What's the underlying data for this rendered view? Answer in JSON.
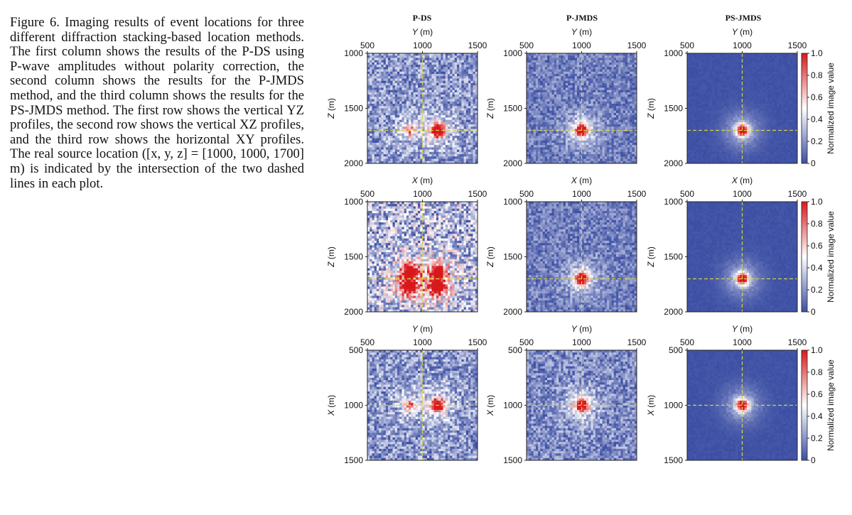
{
  "caption": {
    "text": "Figure 6. Imaging results of event locations for three different diffraction stacking-based location methods. The first column shows the results of the P-DS using P-wave amplitudes without polarity correction, the second column shows the results for the P-JMDS method, and the third column shows the results for the PS-JMDS method. The first row shows the vertical YZ profiles, the second row shows the vertical XZ profiles, and the third row shows the horizontal XY profiles. The real source location ([x, y, z] = [1000, 1000, 1700] m) is indicated by the intersection of the two dashed lines in each plot."
  },
  "figure": {
    "column_titles": [
      "P-DS",
      "P-JMDS",
      "PS-JMDS"
    ],
    "colorbar_label": "Normalized image value",
    "colorbar_ticks": [
      "0",
      "0.2",
      "0.4",
      "0.6",
      "0.8",
      "1.0"
    ],
    "colors": {
      "low": "#3b4ea3",
      "mid": "#ffffff",
      "high": "#d7191c",
      "crosshair": "#d8d04a"
    }
  },
  "chart_data": [
    {
      "type": "heatmap",
      "row": 1,
      "column": "P-DS",
      "xlabel": "Y (m)",
      "ylabel": "Z (m)",
      "xticks": [
        500,
        1000,
        1500
      ],
      "yticks": [
        1000,
        1500,
        2000
      ],
      "xlim": [
        500,
        1500
      ],
      "ylim": [
        2000,
        1000
      ],
      "crosshair": {
        "x": 1000,
        "y": 1700
      },
      "noise_level": 0.3,
      "hotspots": [
        {
          "x": 1140,
          "y": 1700,
          "value": 1.0
        },
        {
          "x": 880,
          "y": 1700,
          "value": 0.5
        }
      ]
    },
    {
      "type": "heatmap",
      "row": 1,
      "column": "P-JMDS",
      "xlabel": "Y (m)",
      "ylabel": "Z (m)",
      "xticks": [
        500,
        1000,
        1500
      ],
      "yticks": [
        1000,
        1500,
        2000
      ],
      "xlim": [
        500,
        1500
      ],
      "ylim": [
        2000,
        1000
      ],
      "crosshair": {
        "x": 1000,
        "y": 1700
      },
      "noise_level": 0.2,
      "hotspots": [
        {
          "x": 1000,
          "y": 1700,
          "value": 1.0
        }
      ]
    },
    {
      "type": "heatmap",
      "row": 1,
      "column": "PS-JMDS",
      "xlabel": "Y (m)",
      "ylabel": "Z (m)",
      "xticks": [
        500,
        1000,
        1500
      ],
      "yticks": [
        1000,
        1500,
        2000
      ],
      "xlim": [
        500,
        1500
      ],
      "ylim": [
        2000,
        1000
      ],
      "crosshair": {
        "x": 1000,
        "y": 1700
      },
      "noise_level": 0.02,
      "hotspots": [
        {
          "x": 1000,
          "y": 1700,
          "value": 1.0
        }
      ]
    },
    {
      "type": "heatmap",
      "row": 2,
      "column": "P-DS",
      "xlabel": "X (m)",
      "ylabel": "Z (m)",
      "xticks": [
        500,
        1000,
        1500
      ],
      "yticks": [
        1000,
        1500,
        2000
      ],
      "xlim": [
        500,
        1500
      ],
      "ylim": [
        2000,
        1000
      ],
      "crosshair": {
        "x": 1000,
        "y": 1700
      },
      "noise_level": 0.45,
      "hotspots": [
        {
          "x": 880,
          "y": 1640,
          "value": 0.9
        },
        {
          "x": 1140,
          "y": 1640,
          "value": 0.9
        },
        {
          "x": 880,
          "y": 1770,
          "value": 1.0
        },
        {
          "x": 1140,
          "y": 1770,
          "value": 1.0
        }
      ]
    },
    {
      "type": "heatmap",
      "row": 2,
      "column": "P-JMDS",
      "xlabel": "X (m)",
      "ylabel": "Z (m)",
      "xticks": [
        500,
        1000,
        1500
      ],
      "yticks": [
        1000,
        1500,
        2000
      ],
      "xlim": [
        500,
        1500
      ],
      "ylim": [
        2000,
        1000
      ],
      "crosshair": {
        "x": 1000,
        "y": 1700
      },
      "noise_level": 0.2,
      "hotspots": [
        {
          "x": 1000,
          "y": 1700,
          "value": 1.0
        }
      ]
    },
    {
      "type": "heatmap",
      "row": 2,
      "column": "PS-JMDS",
      "xlabel": "X (m)",
      "ylabel": "Z (m)",
      "xticks": [
        500,
        1000,
        1500
      ],
      "yticks": [
        1000,
        1500,
        2000
      ],
      "xlim": [
        500,
        1500
      ],
      "ylim": [
        2000,
        1000
      ],
      "crosshair": {
        "x": 1000,
        "y": 1700
      },
      "noise_level": 0.02,
      "hotspots": [
        {
          "x": 1000,
          "y": 1700,
          "value": 1.0
        }
      ]
    },
    {
      "type": "heatmap",
      "row": 3,
      "column": "P-DS",
      "xlabel": "Y (m)",
      "ylabel": "X (m)",
      "xticks": [
        500,
        1000,
        1500
      ],
      "yticks": [
        500,
        1000,
        1500
      ],
      "xlim": [
        500,
        1500
      ],
      "ylim": [
        1500,
        500
      ],
      "crosshair": {
        "x": 1000,
        "y": 1000
      },
      "noise_level": 0.3,
      "hotspots": [
        {
          "x": 1140,
          "y": 1000,
          "value": 1.0
        },
        {
          "x": 880,
          "y": 1000,
          "value": 0.5
        }
      ]
    },
    {
      "type": "heatmap",
      "row": 3,
      "column": "P-JMDS",
      "xlabel": "Y (m)",
      "ylabel": "X (m)",
      "xticks": [
        500,
        1000,
        1500
      ],
      "yticks": [
        500,
        1000,
        1500
      ],
      "xlim": [
        500,
        1500
      ],
      "ylim": [
        1500,
        500
      ],
      "crosshair": {
        "x": 1000,
        "y": 1000
      },
      "noise_level": 0.25,
      "hotspots": [
        {
          "x": 1000,
          "y": 1000,
          "value": 1.0
        }
      ]
    },
    {
      "type": "heatmap",
      "row": 3,
      "column": "PS-JMDS",
      "xlabel": "Y (m)",
      "ylabel": "X (m)",
      "xticks": [
        500,
        1000,
        1500
      ],
      "yticks": [
        500,
        1000,
        1500
      ],
      "xlim": [
        500,
        1500
      ],
      "ylim": [
        1500,
        500
      ],
      "crosshair": {
        "x": 1000,
        "y": 1000
      },
      "noise_level": 0.02,
      "hotspots": [
        {
          "x": 1000,
          "y": 1000,
          "value": 1.0
        }
      ]
    }
  ]
}
